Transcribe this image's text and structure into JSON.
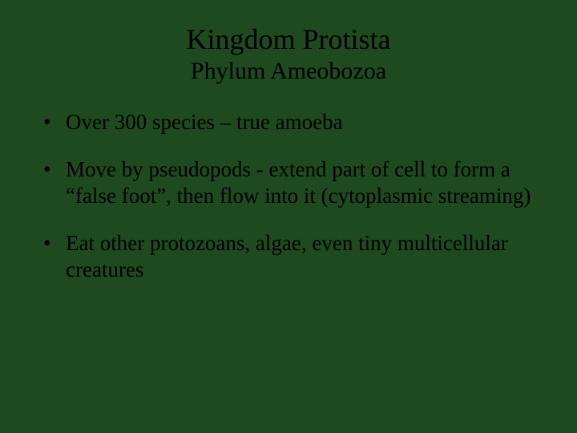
{
  "background_color": "#1f4a1f",
  "text_color": "#000000",
  "font_family": "Times New Roman",
  "title": {
    "text": "Kingdom Protista",
    "fontsize": 36
  },
  "subtitle": {
    "text": "Phylum Ameobozoa",
    "fontsize": 30
  },
  "bullets": {
    "fontsize": 27,
    "items": [
      "Over 300 species – true amoeba",
      "Move by pseudopods - extend part of cell to form a “false foot”, then flow into it (cytoplasmic streaming)",
      "Eat other protozoans, algae, even tiny multicellular creatures"
    ]
  }
}
